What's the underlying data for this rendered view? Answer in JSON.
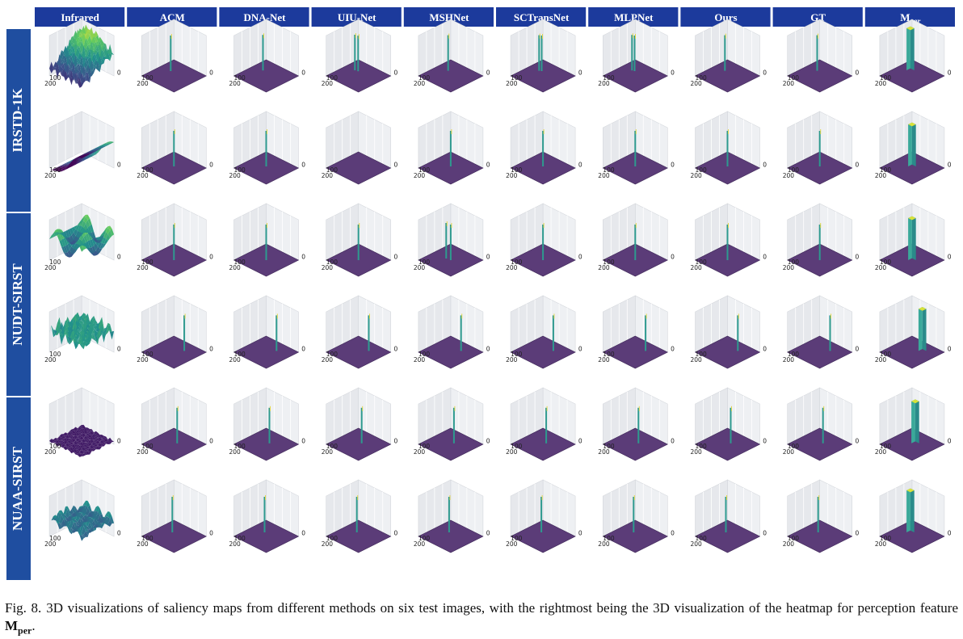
{
  "figure": {
    "columns": [
      {
        "label": "Infrared"
      },
      {
        "label": "ACM"
      },
      {
        "label": "DNA-Net"
      },
      {
        "label": "UIU-Net"
      },
      {
        "label": "MSHNet"
      },
      {
        "label": "SCTransNet"
      },
      {
        "label": "MLPNet"
      },
      {
        "label": "Ours"
      },
      {
        "label": "GT"
      },
      {
        "label": "M",
        "sub": "per"
      }
    ],
    "datasets": [
      {
        "label": "IRSTD-1K",
        "rows": 2
      },
      {
        "label": "NUDT-SIRST",
        "rows": 2
      },
      {
        "label": "NUAA-SIRST",
        "rows": 2
      }
    ],
    "rows": [
      {
        "infrared_style": "mountain",
        "peak": [
          0.3,
          0.35
        ],
        "spikes": {
          "ACM": [
            [
              0.3,
              0.4
            ]
          ],
          "DNA-Net": [
            [
              0.28,
              0.38
            ]
          ],
          "UIU-Net": [
            [
              0.27,
              0.38
            ],
            [
              0.35,
              0.36
            ]
          ],
          "MSHNet": [
            [
              0.3,
              0.38
            ]
          ],
          "SCTransNet": [
            [
              0.28,
              0.4
            ],
            [
              0.33,
              0.37
            ]
          ],
          "MLPNet": [
            [
              0.28,
              0.38
            ],
            [
              0.34,
              0.36
            ]
          ],
          "Ours": [
            [
              0.3,
              0.38
            ]
          ],
          "GT": [
            [
              0.3,
              0.38
            ]
          ]
        }
      },
      {
        "infrared_style": "slope",
        "peak": [
          0.45,
          0.45
        ],
        "spikes": {
          "ACM": [
            [
              0.45,
              0.45
            ]
          ],
          "DNA-Net": [
            [
              0.45,
              0.45
            ]
          ],
          "UIU-Net": [],
          "MSHNet": [
            [
              0.45,
              0.45
            ]
          ],
          "SCTransNet": [
            [
              0.45,
              0.45
            ]
          ],
          "MLPNet": [
            [
              0.45,
              0.45
            ]
          ],
          "Ours": [
            [
              0.45,
              0.45
            ]
          ],
          "GT": [
            [
              0.45,
              0.45
            ]
          ]
        }
      },
      {
        "infrared_style": "waves",
        "peak": [
          0.5,
          0.5
        ],
        "spikes": {
          "ACM": [
            [
              0.5,
              0.5
            ]
          ],
          "DNA-Net": [
            [
              0.5,
              0.5
            ]
          ],
          "UIU-Net": [
            [
              0.5,
              0.5
            ]
          ],
          "MSHNet": [
            [
              0.5,
              0.5
            ],
            [
              0.38,
              0.52
            ]
          ],
          "SCTransNet": [
            [
              0.5,
              0.5
            ]
          ],
          "MLPNet": [
            [
              0.5,
              0.5
            ]
          ],
          "Ours": [
            [
              0.5,
              0.5
            ]
          ],
          "GT": [
            [
              0.5,
              0.5
            ]
          ]
        }
      },
      {
        "infrared_style": "noisy-high",
        "peak": [
          0.62,
          0.3
        ],
        "spikes": {
          "ACM": [
            [
              0.62,
              0.3
            ]
          ],
          "DNA-Net": [
            [
              0.62,
              0.3
            ]
          ],
          "UIU-Net": [
            [
              0.62,
              0.3
            ]
          ],
          "MSHNet": [
            [
              0.62,
              0.3
            ]
          ],
          "SCTransNet": [
            [
              0.62,
              0.3
            ]
          ],
          "MLPNet": [
            [
              0.62,
              0.3
            ]
          ],
          "Ours": [
            [
              0.62,
              0.3
            ]
          ],
          "GT": [
            [
              0.62,
              0.3
            ]
          ]
        }
      },
      {
        "infrared_style": "flat",
        "peak": [
          0.52,
          0.42
        ],
        "spikes": {
          "ACM": [
            [
              0.52,
              0.42
            ]
          ],
          "DNA-Net": [
            [
              0.52,
              0.42
            ]
          ],
          "UIU-Net": [
            [
              0.52,
              0.42
            ]
          ],
          "MSHNet": [
            [
              0.52,
              0.42
            ]
          ],
          "SCTransNet": [
            [
              0.52,
              0.42
            ]
          ],
          "MLPNet": [
            [
              0.52,
              0.42
            ]
          ],
          "Ours": [
            [
              0.52,
              0.42
            ]
          ],
          "GT": [
            [
              0.52,
              0.42
            ]
          ]
        }
      },
      {
        "infrared_style": "noisy-low",
        "peak": [
          0.35,
          0.4
        ],
        "spikes": {
          "ACM": [
            [
              0.35,
              0.4
            ]
          ],
          "DNA-Net": [
            [
              0.35,
              0.4
            ]
          ],
          "UIU-Net": [
            [
              0.35,
              0.4
            ]
          ],
          "MSHNet": [
            [
              0.35,
              0.4
            ]
          ],
          "SCTransNet": [
            [
              0.35,
              0.4
            ]
          ],
          "MLPNet": [
            [
              0.35,
              0.4
            ]
          ],
          "Ours": [
            [
              0.35,
              0.4
            ]
          ],
          "GT": [
            [
              0.35,
              0.4
            ]
          ]
        }
      }
    ],
    "tick_labels": {
      "left_a": "100",
      "left_b": "200",
      "right_a": "0"
    },
    "colors": {
      "header_bg": "#1c3a9c",
      "header_text": "#ffffff",
      "side_bg": "#1f4ea0",
      "plane": "#5b3c78",
      "spike": "#2e9a8f"
    }
  },
  "caption": {
    "label": "Fig. 8.",
    "text": "3D visualizations of saliency maps from different methods on six test images, with the rightmost being the 3D visualization of the heatmap for perception feature ",
    "symbol": "M",
    "symbol_sub": "per",
    "end": "."
  }
}
